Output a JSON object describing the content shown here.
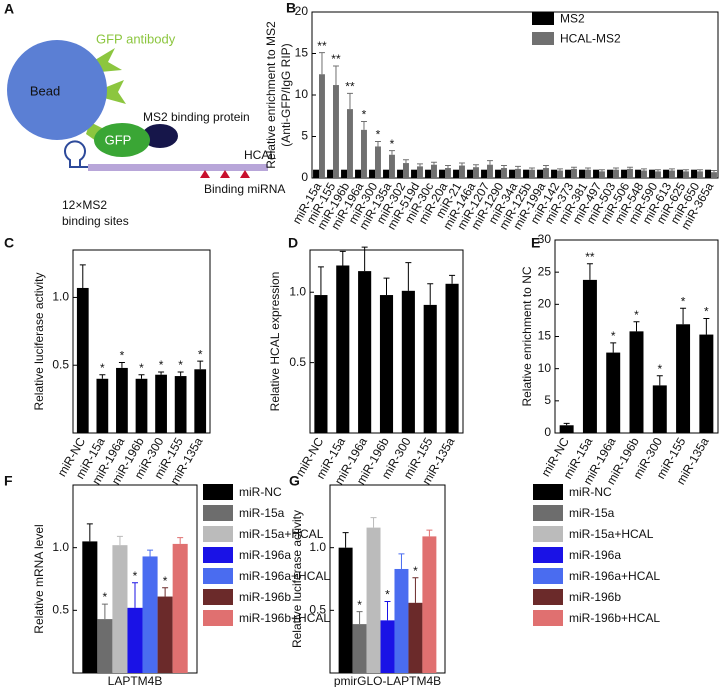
{
  "panel_labels": [
    "A",
    "B",
    "C",
    "D",
    "E",
    "F",
    "G"
  ],
  "diagram": {
    "bead": "Bead",
    "antibody": "GFP antibody",
    "gfp": "GFP",
    "ms2_protein": "MS2 binding protein",
    "rna": "HCAL",
    "sites": [
      "12×MS2",
      "binding sites"
    ],
    "mirna": "Binding miRNA"
  },
  "chart_data": [
    {
      "type": "bar",
      "ylabel": "Relative enrichment to MS2",
      "ylabel_sub": "(Anti-GFP/IgG RIP)",
      "categories": [
        "miR-15a",
        "miR-155",
        "miR-196b",
        "miR-196a",
        "miR-300",
        "miR-135a",
        "miR-302",
        "miR-519d",
        "miR-30c",
        "miR-20a",
        "miR-21",
        "miR-146a",
        "miR-1207",
        "miR-1290",
        "miR-34a",
        "miR-125b",
        "miR-199a",
        "miR-142",
        "miR-373",
        "miR-381",
        "miR-497",
        "miR-503",
        "miR-506",
        "miR-548",
        "miR-590",
        "miR-613",
        "miR-625",
        "miR-650",
        "miR-365a"
      ],
      "series": [
        {
          "name": "MS2",
          "color": "#000000",
          "values": [
            1,
            1,
            1,
            1,
            1,
            1,
            1,
            1,
            1,
            1,
            1,
            1,
            1,
            1,
            1,
            1,
            1,
            1,
            1,
            1,
            1,
            1,
            1,
            1,
            1,
            1,
            1,
            1,
            1
          ]
        },
        {
          "name": "HCAL-MS2",
          "color": "#707070",
          "values": [
            12.5,
            11.2,
            8.3,
            5.8,
            3.8,
            2.8,
            1.8,
            1.4,
            1.6,
            1.2,
            1.5,
            1.3,
            1.6,
            1.2,
            1.1,
            1.0,
            1.2,
            0.9,
            1.1,
            1.0,
            0.8,
            1.0,
            1.1,
            0.9,
            0.8,
            0.9,
            0.8,
            0.8,
            0.7
          ],
          "errors": [
            2.6,
            2.3,
            1.9,
            1.0,
            0.6,
            0.5,
            0.4,
            0.3,
            0.3,
            0.3,
            0.3,
            0.3,
            0.5,
            0.3,
            0.3,
            0.2,
            0.3,
            0.2,
            0.2,
            0.2,
            0.2,
            0.2,
            0.2,
            0.2,
            0.2,
            0.2,
            0.2,
            0.2,
            0.2
          ],
          "significance": [
            "**",
            "**",
            "**",
            "*",
            "*",
            "*",
            null,
            null,
            null,
            null,
            null,
            null,
            null,
            null,
            null,
            null,
            null,
            null,
            null,
            null,
            null,
            null,
            null,
            null,
            null,
            null,
            null,
            null,
            null
          ]
        }
      ],
      "ylim": [
        0,
        20
      ],
      "yticks": [
        0,
        5,
        10,
        15,
        20
      ],
      "legend": "upper right"
    },
    {
      "type": "bar",
      "ylabel": "Relative luciferase activity",
      "categories": [
        "miR-NC",
        "miR-15a",
        "miR-196a",
        "miR-196b",
        "miR-300",
        "miR-155",
        "miR-135a"
      ],
      "series": [
        {
          "color": "#000000",
          "values": [
            1.07,
            0.4,
            0.48,
            0.4,
            0.43,
            0.42,
            0.47
          ],
          "errors": [
            0.17,
            0.03,
            0.04,
            0.03,
            0.02,
            0.03,
            0.06
          ],
          "significance": [
            null,
            "*",
            "*",
            "*",
            "*",
            "*",
            "*"
          ]
        }
      ],
      "ylim": [
        0,
        1.35
      ],
      "yticks": [
        0.5,
        {
          "value": 1,
          "label": "1.0"
        }
      ]
    },
    {
      "type": "bar",
      "ylabel": "Relative HCAL expression",
      "categories": [
        "miR-NC",
        "miR-15a",
        "miR-196a",
        "miR-196b",
        "miR-300",
        "miR-155",
        "miR-135a"
      ],
      "series": [
        {
          "color": "#000000",
          "values": [
            0.98,
            1.19,
            1.15,
            0.98,
            1.01,
            0.91,
            1.06
          ],
          "errors": [
            0.2,
            0.1,
            0.17,
            0.12,
            0.2,
            0.15,
            0.06
          ]
        }
      ],
      "ylim": [
        0,
        1.3
      ],
      "yticks": [
        0.5,
        {
          "value": 1,
          "label": "1.0"
        }
      ]
    },
    {
      "type": "bar",
      "ylabel": "Relative enrichment to NC",
      "categories": [
        "miR-NC",
        "miR-15a",
        "miR-196a",
        "miR-196b",
        "miR-300",
        "miR-155",
        "miR-135a"
      ],
      "series": [
        {
          "color": "#000000",
          "values": [
            1.2,
            23.8,
            12.5,
            15.8,
            7.4,
            16.9,
            15.3
          ],
          "errors": [
            0.3,
            2.5,
            1.5,
            1.5,
            1.5,
            2.5,
            2.5
          ],
          "significance": [
            null,
            "**",
            "*",
            "*",
            "*",
            "*",
            "*"
          ]
        }
      ],
      "ylim": [
        0,
        30
      ],
      "yticks": [
        0,
        5,
        10,
        15,
        20,
        25,
        30
      ]
    },
    {
      "type": "bar",
      "ylabel": "Relative mRNA level",
      "categories": [
        "LAPTM4B"
      ],
      "series": [
        {
          "name": "miR-NC",
          "color": "#000000",
          "values": [
            1.05
          ],
          "errors": [
            0.14
          ]
        },
        {
          "name": "miR-15a",
          "color": "#6d6d6d",
          "values": [
            0.43
          ],
          "errors": [
            0.12
          ],
          "significance": [
            "*"
          ]
        },
        {
          "name": "miR-15a+HCAL",
          "color": "#bbbbbb",
          "values": [
            1.02
          ],
          "errors": [
            0.07
          ]
        },
        {
          "name": "miR-196a",
          "color": "#1a12e6",
          "values": [
            0.52
          ],
          "errors": [
            0.2
          ],
          "significance": [
            "*"
          ]
        },
        {
          "name": "miR-196a+HCAL",
          "color": "#4a6cf0",
          "values": [
            0.93
          ],
          "errors": [
            0.05
          ]
        },
        {
          "name": "miR-196b",
          "color": "#6b2a2a",
          "values": [
            0.61
          ],
          "errors": [
            0.07
          ],
          "significance": [
            "*"
          ]
        },
        {
          "name": "miR-196b+HCAL",
          "color": "#e07070",
          "values": [
            1.03
          ],
          "errors": [
            0.05
          ]
        }
      ],
      "ylim": [
        0,
        1.5
      ],
      "yticks": [
        0.5,
        {
          "value": 1,
          "label": "1.0"
        }
      ],
      "legend": "outside right"
    },
    {
      "type": "bar",
      "ylabel": "Relative luciferase activity",
      "categories": [
        "pmirGLO-LAPTM4B"
      ],
      "series": [
        {
          "name": "miR-NC",
          "color": "#000000",
          "values": [
            1.0
          ],
          "errors": [
            0.12
          ]
        },
        {
          "name": "miR-15a",
          "color": "#6d6d6d",
          "values": [
            0.39
          ],
          "errors": [
            0.1
          ],
          "significance": [
            "*"
          ]
        },
        {
          "name": "miR-15a+HCAL",
          "color": "#bbbbbb",
          "values": [
            1.16
          ],
          "errors": [
            0.08
          ]
        },
        {
          "name": "miR-196a",
          "color": "#1a12e6",
          "values": [
            0.42
          ],
          "errors": [
            0.15
          ],
          "significance": [
            "*"
          ]
        },
        {
          "name": "miR-196a+HCAL",
          "color": "#4a6cf0",
          "values": [
            0.83
          ],
          "errors": [
            0.12
          ]
        },
        {
          "name": "miR-196b",
          "color": "#6b2a2a",
          "values": [
            0.56
          ],
          "errors": [
            0.2
          ],
          "significance": [
            "*"
          ]
        },
        {
          "name": "miR-196b+HCAL",
          "color": "#e07070",
          "values": [
            1.09
          ],
          "errors": [
            0.05
          ]
        }
      ],
      "ylim": [
        0,
        1.5
      ],
      "yticks": [
        0.5,
        {
          "value": 1,
          "label": "1.0"
        }
      ],
      "legend": "outside right"
    }
  ]
}
